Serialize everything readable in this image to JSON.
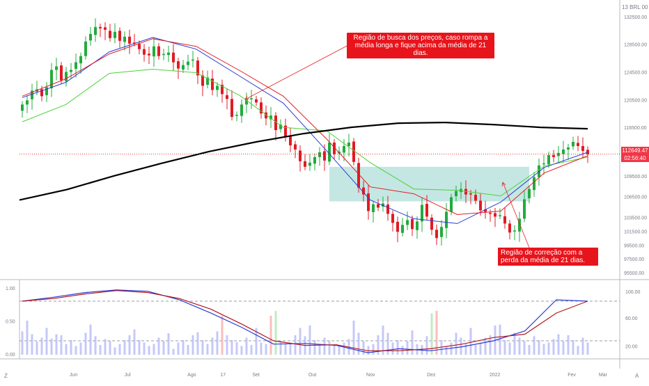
{
  "header": {
    "instrument_label": "13 BRL 00"
  },
  "price_tag": {
    "value": "112649.47",
    "countdown": "02:56:40"
  },
  "annotations": {
    "top": "Região de busca dos preços, caso rompa a média longa e fique acima da média de 21 dias.",
    "bottom": "Região de correção com a perda da média de 21 dias."
  },
  "corner_labels": {
    "left": "Z",
    "right": "A"
  },
  "colors": {
    "up_candle": "#22ab3d",
    "down_candle": "#e01b24",
    "ma_long": "#000000",
    "ma_21": "#e31b23",
    "ma_fast": "#2a3bd6",
    "band_lower": "#4cd137",
    "zone": "#2ca89c",
    "annotation_bg": "#e8141c",
    "osc_blue": "#2a3bd6",
    "osc_red": "#b2181f",
    "volume_bar": "#b2b5f5"
  },
  "chart_data": [
    {
      "type": "candlestick",
      "panel": "price",
      "y_ticks": [
        "132500.00",
        "128500.00",
        "124500.00",
        "120500.00",
        "116500.00",
        "109500.00",
        "106500.00",
        "103500.00",
        "101500.00",
        "99500.00",
        "97500.00",
        "95500.00"
      ],
      "ylim": [
        94500,
        134500
      ],
      "x_ticks": [
        "Jun",
        "Jul",
        "Ago",
        "17",
        "Set",
        "Out",
        "Nov",
        "Dez",
        "2022",
        "Fev",
        "Mar"
      ],
      "last_price": 112649.47,
      "series": [
        {
          "role": "candles",
          "close": [
            119800,
            120400,
            121800,
            122000,
            121000,
            122300,
            124800,
            125300,
            123300,
            124500,
            124800,
            125900,
            126800,
            128900,
            130000,
            131000,
            130800,
            130600,
            129400,
            130300,
            129000,
            129600,
            128600,
            128700,
            127800,
            127000,
            126900,
            128200,
            126800,
            127100,
            127300,
            125900,
            125000,
            125500,
            126000,
            126300,
            124000,
            122500,
            123700,
            121900,
            122500,
            121300,
            120600,
            118000,
            118300,
            119800,
            120500,
            120700,
            120100,
            118500,
            117800,
            118200,
            116100,
            116900,
            115200,
            113900,
            113300,
            111600,
            110800,
            111400,
            112200,
            112900,
            111700,
            114300,
            112600,
            113000,
            113800,
            114300,
            111500,
            107800,
            106800,
            104400,
            105400,
            104900,
            105500,
            104000,
            102700,
            101400,
            102400,
            103100,
            101800,
            102900,
            105300,
            103600,
            101700,
            100500,
            102100,
            104300,
            106400,
            107300,
            107600,
            106800,
            106900,
            105900,
            104500,
            104300,
            104100,
            103600,
            103800,
            102600,
            101300,
            101600,
            103300,
            106100,
            107600,
            109300,
            111000,
            111300,
            112500,
            112200,
            112800,
            113300,
            113600,
            114400,
            113800,
            113100,
            112600
          ]
        },
        {
          "role": "ma_long",
          "label": "",
          "values": [
            106000,
            107500,
            109500,
            111300,
            113000,
            114400,
            115600,
            116500,
            117100,
            117200,
            116900,
            116500,
            116300
          ]
        },
        {
          "role": "ma_21",
          "label": "",
          "values": [
            121000,
            123500,
            127100,
            129300,
            128200,
            124700,
            121000,
            114800,
            107900,
            106900,
            103900,
            104400,
            109900,
            112400
          ]
        },
        {
          "role": "ma_fast",
          "label": "",
          "values": [
            120800,
            123000,
            127400,
            129500,
            127800,
            123900,
            120000,
            113100,
            106000,
            103300,
            102600,
            105700,
            110700,
            112900
          ]
        },
        {
          "role": "band_lower",
          "label": "",
          "values": [
            117300,
            119800,
            124300,
            124900,
            124400,
            121100,
            116500,
            116000,
            111400,
            107600,
            107400,
            106600,
            110900,
            112200
          ]
        }
      ],
      "zone": {
        "x_range": [
          "Nov",
          "Fev"
        ],
        "y_range": [
          105800,
          110800
        ]
      }
    },
    {
      "type": "line",
      "panel": "oscillator",
      "y_ticks_left": [
        "1.00",
        "0.50",
        "0.00"
      ],
      "y_ticks_right": [
        "100.00",
        "60.00",
        "20.00"
      ],
      "ylim": [
        0,
        1
      ],
      "levels": [
        0.8,
        0.2
      ],
      "series": [
        {
          "name": "",
          "values": [
            0.8,
            0.86,
            0.93,
            0.97,
            0.95,
            0.82,
            0.62,
            0.4,
            0.15,
            0.16,
            0.13,
            0.02,
            0.08,
            0.05,
            0.11,
            0.2,
            0.35,
            0.82,
            0.8
          ]
        },
        {
          "name": "",
          "values": [
            0.8,
            0.84,
            0.91,
            0.96,
            0.93,
            0.84,
            0.68,
            0.45,
            0.2,
            0.13,
            0.14,
            0.05,
            0.05,
            0.08,
            0.15,
            0.25,
            0.3,
            0.62,
            0.8
          ]
        }
      ],
      "volume": [
        0.48,
        0.7,
        0.42,
        0.27,
        0.35,
        0.55,
        0.33,
        0.42,
        0.4,
        0.22,
        0.3,
        0.18,
        0.25,
        0.45,
        0.62,
        0.38,
        0.2,
        0.32,
        0.28,
        0.15,
        0.22,
        0.3,
        0.4,
        0.52,
        0.3,
        0.25,
        0.18,
        0.22,
        0.35,
        0.28,
        0.44,
        0.12,
        0.25,
        0.3,
        0.2,
        0.4,
        0.46,
        0.3,
        0.22,
        0.35,
        0.48,
        0.8,
        0.4,
        0.3,
        0.26,
        0.18,
        0.35,
        0.2,
        0.55,
        0.25,
        0.22,
        0.8,
        0.9,
        0.28,
        0.22,
        0.25,
        0.4,
        0.55,
        0.38,
        0.6,
        0.3,
        0.22,
        0.35,
        0.28,
        0.2,
        0.18,
        0.25,
        0.32,
        0.7,
        0.45,
        0.28,
        0.18,
        0.22,
        0.4,
        0.6,
        0.45,
        0.25,
        0.3,
        0.18,
        0.28,
        0.5,
        0.22,
        0.2,
        0.38,
        0.85,
        0.9,
        0.3,
        0.18,
        0.25,
        0.45,
        0.35,
        0.22,
        0.55,
        0.2,
        0.25,
        0.35,
        0.4,
        0.6,
        0.62,
        0.3,
        0.25,
        0.45,
        0.35,
        0.28,
        0.2,
        0.38,
        0.3,
        0.22,
        0.25,
        0.32,
        0.42,
        0.28,
        0.4,
        0.3,
        0.18,
        0.35,
        0.25
      ]
    }
  ]
}
